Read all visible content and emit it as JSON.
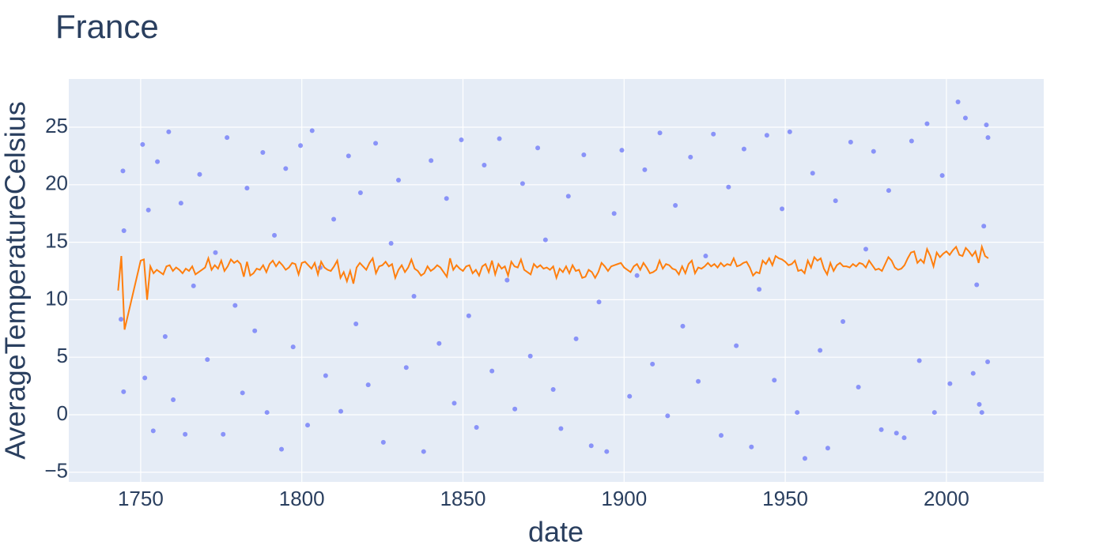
{
  "chart_data": {
    "type": "scatter",
    "title": "France",
    "xlabel": "date",
    "ylabel": "AverageTemperatureCelsius",
    "xlim": [
      1727.7,
      2030.2
    ],
    "ylim": [
      -5.84,
      29.19
    ],
    "xticks": [
      1750,
      1800,
      1850,
      1900,
      1950,
      2000
    ],
    "yticks": [
      {
        "value": -5,
        "label": "−5"
      },
      0,
      5,
      10,
      15,
      20,
      25
    ],
    "grid": true,
    "background": "#e5ecf6",
    "series": [
      {
        "mode": "markers",
        "color": "#636efa",
        "x": [
          1743.9,
          1744.5,
          1744.7,
          1744.8,
          1750.6,
          1751.3,
          1752.4,
          1753.9,
          1755.2,
          1757.6,
          1758.7,
          1760.1,
          1762.5,
          1763.8,
          1766.4,
          1768.3,
          1770.7,
          1773.2,
          1775.6,
          1776.8,
          1779.3,
          1781.6,
          1783.0,
          1785.4,
          1787.9,
          1789.2,
          1791.5,
          1793.7,
          1795.0,
          1797.3,
          1799.6,
          1801.8,
          1803.2,
          1805.7,
          1807.4,
          1809.9,
          1812.1,
          1814.5,
          1816.8,
          1818.2,
          1820.6,
          1822.9,
          1825.3,
          1827.7,
          1830.0,
          1832.4,
          1834.8,
          1837.8,
          1840.1,
          1842.6,
          1844.9,
          1847.3,
          1849.5,
          1851.8,
          1854.2,
          1856.6,
          1859.0,
          1861.3,
          1863.7,
          1866.1,
          1868.5,
          1870.9,
          1873.2,
          1875.6,
          1878.0,
          1880.4,
          1882.7,
          1885.1,
          1887.5,
          1889.8,
          1892.2,
          1894.6,
          1896.9,
          1899.3,
          1901.7,
          1904.0,
          1906.4,
          1908.8,
          1911.1,
          1913.5,
          1915.9,
          1918.2,
          1920.6,
          1923.0,
          1925.3,
          1927.7,
          1930.1,
          1932.4,
          1934.8,
          1937.2,
          1939.5,
          1941.9,
          1944.3,
          1946.6,
          1949.0,
          1951.4,
          1953.7,
          1956.1,
          1958.5,
          1960.8,
          1963.2,
          1965.6,
          1967.9,
          1970.3,
          1972.7,
          1975.0,
          1977.4,
          1979.8,
          1982.1,
          1984.5,
          1986.9,
          1989.2,
          1991.6,
          1994.0,
          1996.3,
          1998.7,
          2001.1,
          2003.6,
          2005.9,
          2008.3,
          2010.2,
          2011.0,
          2012.4,
          2012.9,
          2012.8,
          2011.6,
          2009.4
        ],
        "values": [
          8.3,
          21.2,
          2.0,
          16.0,
          23.5,
          3.2,
          17.8,
          -1.4,
          22.0,
          6.8,
          24.6,
          1.3,
          18.4,
          -1.7,
          11.2,
          20.9,
          4.8,
          14.1,
          -1.7,
          24.1,
          9.5,
          1.9,
          19.7,
          7.3,
          22.8,
          0.2,
          15.6,
          -3.0,
          21.4,
          5.9,
          23.4,
          -0.9,
          24.7,
          12.8,
          3.4,
          17.0,
          0.3,
          22.5,
          7.9,
          19.3,
          2.6,
          23.6,
          -2.4,
          14.9,
          20.4,
          4.1,
          10.3,
          -3.2,
          22.1,
          6.2,
          18.8,
          1.0,
          23.9,
          8.6,
          -1.1,
          21.7,
          3.8,
          24.0,
          11.7,
          0.5,
          20.1,
          5.1,
          23.2,
          15.2,
          2.2,
          -1.2,
          19.0,
          6.6,
          22.6,
          -2.7,
          9.8,
          -3.2,
          17.5,
          23.0,
          1.6,
          12.1,
          21.3,
          4.4,
          24.5,
          -0.1,
          18.2,
          7.7,
          22.4,
          2.9,
          13.8,
          24.4,
          -1.8,
          19.8,
          6.0,
          23.1,
          -2.8,
          10.9,
          24.3,
          3.0,
          17.9,
          24.6,
          0.2,
          -3.8,
          21.0,
          5.6,
          -2.9,
          18.6,
          8.1,
          23.7,
          2.4,
          14.4,
          22.9,
          -1.3,
          19.5,
          -1.6,
          -2.0,
          23.8,
          4.7,
          25.3,
          0.2,
          20.8,
          2.7,
          27.2,
          25.8,
          3.6,
          0.9,
          0.2,
          25.2,
          24.1,
          4.6,
          16.4,
          11.3
        ]
      },
      {
        "mode": "lines",
        "color": "#ff7f0e",
        "x": [
          1743,
          1744,
          1745,
          1750,
          1751,
          1752,
          1753,
          1754,
          1755,
          1756,
          1757,
          1758,
          1759,
          1760,
          1761,
          1762,
          1763,
          1764,
          1765,
          1766,
          1767,
          1768,
          1769,
          1770,
          1771,
          1772,
          1773,
          1774,
          1775,
          1776,
          1777,
          1778,
          1779,
          1780,
          1781,
          1782,
          1783,
          1784,
          1785,
          1786,
          1787,
          1788,
          1789,
          1790,
          1791,
          1792,
          1793,
          1794,
          1795,
          1796,
          1797,
          1798,
          1799,
          1800,
          1801,
          1802,
          1803,
          1804,
          1805,
          1806,
          1807,
          1808,
          1809,
          1810,
          1811,
          1812,
          1813,
          1814,
          1815,
          1816,
          1817,
          1818,
          1819,
          1820,
          1821,
          1822,
          1823,
          1824,
          1825,
          1826,
          1827,
          1828,
          1829,
          1830,
          1831,
          1832,
          1833,
          1834,
          1835,
          1836,
          1837,
          1838,
          1839,
          1840,
          1841,
          1842,
          1843,
          1844,
          1845,
          1846,
          1847,
          1848,
          1849,
          1850,
          1851,
          1852,
          1853,
          1854,
          1855,
          1856,
          1857,
          1858,
          1859,
          1860,
          1861,
          1862,
          1863,
          1864,
          1865,
          1866,
          1867,
          1868,
          1869,
          1870,
          1871,
          1872,
          1873,
          1874,
          1875,
          1876,
          1877,
          1878,
          1879,
          1880,
          1881,
          1882,
          1883,
          1884,
          1885,
          1886,
          1887,
          1888,
          1889,
          1890,
          1891,
          1892,
          1893,
          1894,
          1895,
          1896,
          1897,
          1898,
          1899,
          1900,
          1901,
          1902,
          1903,
          1904,
          1905,
          1906,
          1907,
          1908,
          1909,
          1910,
          1911,
          1912,
          1913,
          1914,
          1915,
          1916,
          1917,
          1918,
          1919,
          1920,
          1921,
          1922,
          1923,
          1924,
          1925,
          1926,
          1927,
          1928,
          1929,
          1930,
          1931,
          1932,
          1933,
          1934,
          1935,
          1936,
          1937,
          1938,
          1939,
          1940,
          1941,
          1942,
          1943,
          1944,
          1945,
          1946,
          1947,
          1948,
          1949,
          1950,
          1951,
          1952,
          1953,
          1954,
          1955,
          1956,
          1957,
          1958,
          1959,
          1960,
          1961,
          1962,
          1963,
          1964,
          1965,
          1966,
          1967,
          1968,
          1969,
          1970,
          1971,
          1972,
          1973,
          1974,
          1975,
          1976,
          1977,
          1978,
          1979,
          1980,
          1981,
          1982,
          1983,
          1984,
          1985,
          1986,
          1987,
          1988,
          1989,
          1990,
          1991,
          1992,
          1993,
          1994,
          1995,
          1996,
          1997,
          1998,
          1999,
          2000,
          2001,
          2002,
          2003,
          2004,
          2005,
          2006,
          2007,
          2008,
          2009,
          2010,
          2011,
          2012,
          2013
        ],
        "values": [
          10.8,
          13.8,
          7.4,
          13.4,
          13.5,
          10.0,
          12.9,
          12.3,
          12.6,
          12.4,
          12.2,
          12.9,
          13.0,
          12.5,
          12.8,
          12.6,
          12.3,
          12.7,
          12.5,
          12.9,
          12.2,
          12.4,
          12.6,
          12.8,
          13.6,
          12.6,
          13.0,
          12.7,
          13.4,
          12.5,
          12.9,
          13.5,
          13.2,
          13.4,
          13.1,
          12.0,
          13.3,
          12.1,
          12.3,
          12.7,
          12.6,
          13.0,
          12.4,
          13.1,
          13.4,
          12.9,
          13.3,
          13.0,
          12.6,
          12.8,
          13.2,
          13.1,
          12.2,
          13.2,
          13.3,
          13.0,
          12.7,
          13.2,
          12.2,
          13.3,
          12.8,
          12.6,
          12.5,
          12.9,
          13.4,
          11.9,
          12.4,
          11.6,
          12.5,
          11.4,
          12.8,
          13.2,
          12.9,
          12.6,
          13.2,
          13.6,
          12.3,
          12.9,
          13.0,
          13.3,
          12.9,
          13.1,
          11.9,
          12.6,
          13.0,
          12.4,
          12.8,
          13.5,
          12.7,
          12.5,
          12.1,
          12.3,
          12.9,
          12.5,
          12.7,
          13.0,
          12.8,
          12.4,
          12.0,
          13.6,
          12.6,
          13.0,
          12.7,
          12.5,
          12.9,
          13.0,
          12.3,
          12.6,
          12.1,
          12.9,
          13.1,
          12.4,
          13.4,
          12.2,
          13.1,
          12.7,
          12.9,
          12.1,
          13.3,
          12.9,
          12.8,
          13.5,
          12.6,
          12.4,
          12.2,
          13.1,
          12.8,
          13.0,
          12.7,
          12.8,
          12.6,
          12.9,
          11.9,
          12.7,
          12.4,
          12.9,
          12.3,
          13.0,
          12.5,
          12.6,
          11.9,
          12.0,
          12.6,
          12.4,
          11.9,
          12.4,
          13.2,
          12.9,
          12.5,
          12.9,
          13.0,
          13.1,
          13.2,
          12.8,
          12.6,
          12.4,
          12.9,
          13.1,
          12.6,
          13.2,
          12.8,
          12.3,
          12.4,
          12.6,
          13.4,
          12.7,
          13.1,
          13.0,
          12.7,
          12.6,
          12.2,
          12.9,
          12.3,
          13.1,
          13.4,
          12.3,
          12.8,
          12.7,
          12.9,
          13.2,
          12.9,
          13.1,
          12.8,
          13.2,
          12.9,
          13.1,
          13.0,
          13.6,
          12.9,
          13.0,
          13.2,
          13.3,
          12.8,
          12.1,
          12.4,
          12.3,
          13.4,
          13.1,
          13.6,
          13.0,
          13.8,
          13.6,
          13.5,
          13.3,
          13.0,
          13.1,
          13.4,
          12.5,
          12.6,
          12.3,
          13.4,
          12.8,
          13.7,
          13.4,
          13.6,
          12.7,
          12.2,
          13.2,
          12.5,
          13.0,
          13.2,
          12.9,
          12.9,
          12.8,
          13.1,
          12.9,
          13.2,
          13.1,
          12.8,
          13.4,
          13.0,
          12.6,
          12.7,
          12.5,
          13.1,
          13.7,
          13.4,
          12.8,
          12.6,
          12.7,
          13.0,
          13.6,
          14.1,
          14.2,
          13.2,
          13.5,
          13.2,
          14.4,
          13.8,
          12.9,
          14.1,
          13.7,
          14.0,
          14.2,
          13.9,
          14.3,
          14.6,
          13.9,
          13.8,
          14.5,
          14.2,
          13.8,
          14.2,
          13.2,
          14.6,
          13.8,
          13.6
        ]
      }
    ]
  }
}
